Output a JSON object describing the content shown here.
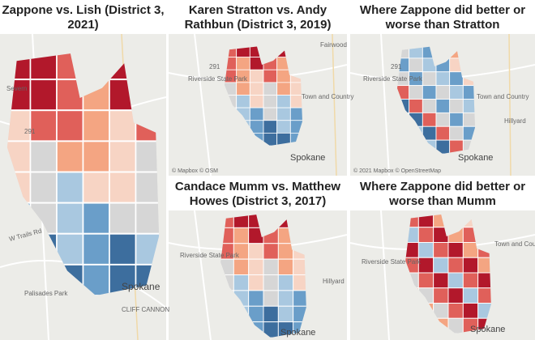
{
  "panels": [
    {
      "title": "Zappone vs. Lish (District 3, 2021)",
      "labels": [
        "Severn",
        "291",
        "W Trails Rd",
        "Palisades Park",
        "Spokane",
        "CLIFF CANNON"
      ]
    },
    {
      "title": "Karen Stratton vs. Andy Rathbun (District 3, 2019)",
      "labels": [
        "Fairwood",
        "291",
        "Riverside State Park",
        "Town and Country",
        "Spokane",
        "© Mapbox © OSM"
      ]
    },
    {
      "title": "Where Zappone did better or worse than Stratton",
      "labels": [
        "291",
        "Riverside State Park",
        "Town and Country",
        "Hillyard",
        "Spokane",
        "© 2021 Mapbox © OpenStreetMap"
      ]
    },
    {
      "title": "Candace Mumm vs. Matthew Howes (District 3, 2017)",
      "labels": [
        "Riverside State Park",
        "Hillyard",
        "Spokane"
      ]
    },
    {
      "title": "Where Zappone did better or worse than Mumm",
      "labels": [
        "Riverside State Park",
        "Town and Country",
        "Spokane"
      ]
    }
  ]
}
